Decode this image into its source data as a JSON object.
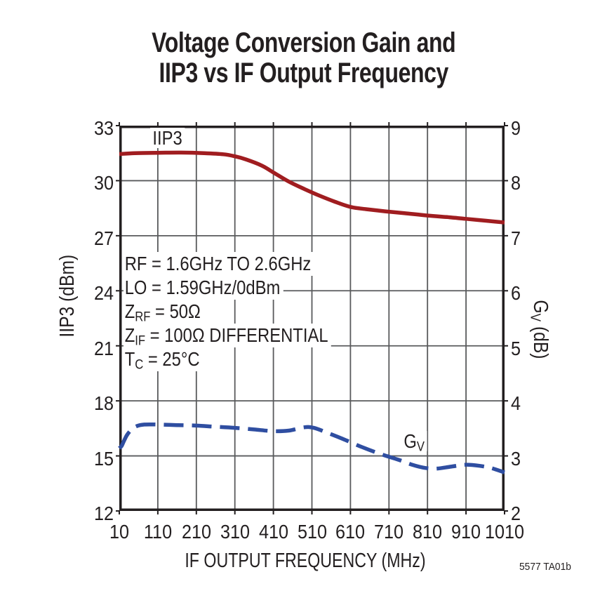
{
  "footnote": "5577 TA01b",
  "curve_labels": {
    "iip3": "IIP3",
    "gv_pre": "G",
    "gv_sub": "V"
  },
  "axis_titles": {
    "left": "IIP3 (dBm)",
    "right_pre": "G",
    "right_sub": "V",
    "right_post": " (dB)"
  },
  "annotation_lines": [
    {
      "pre": "RF = 1.6GHz TO 2.6GHz",
      "sub": "",
      "post": ""
    },
    {
      "pre": "LO = 1.59GHz/0dBm",
      "sub": "",
      "post": ""
    },
    {
      "pre": "Z",
      "sub": "RF",
      "post": " = 50Ω"
    },
    {
      "pre": "Z",
      "sub": "IF",
      "post": " = 100Ω DIFFERENTIAL"
    },
    {
      "pre": "T",
      "sub": "C",
      "post": " = 25°C"
    }
  ],
  "colors": {
    "iip3_curve": "#A01D20",
    "gv_curve": "#2F4EA1",
    "grid": "#595A5C",
    "frame": "#231F20",
    "text": "#231F20",
    "background": "#FFFFFF"
  },
  "chart_data": {
    "type": "line",
    "title": "Voltage Conversion Gain and IIP3 vs IF Output Frequency",
    "title_lines": [
      "Voltage Conversion Gain and",
      "IIP3 vs IF Output Frequency"
    ],
    "xlabel": "IF OUTPUT FREQUENCY (MHz)",
    "ylabel_left": "IIP3 (dBm)",
    "ylabel_right": "GV (dB)",
    "xlim": [
      10,
      1010
    ],
    "ylim_left": [
      12,
      33
    ],
    "ylim_right": [
      2,
      9
    ],
    "x_ticks": [
      10,
      110,
      210,
      310,
      410,
      510,
      610,
      710,
      810,
      910,
      1010
    ],
    "y_ticks_left": [
      33,
      30,
      27,
      24,
      21,
      18,
      15,
      12
    ],
    "y_ticks_right": [
      9,
      8,
      7,
      6,
      5,
      4,
      3,
      2
    ],
    "grid": true,
    "annotations": [
      "RF = 1.6GHz TO 2.6GHz",
      "LO = 1.59GHz/0dBm",
      "ZRF = 50Ω",
      "ZIF = 100Ω DIFFERENTIAL",
      "TC = 25°C"
    ],
    "series": [
      {
        "name": "IIP3",
        "axis": "left",
        "unit": "dBm",
        "line_style": "solid",
        "color": "#A01D20",
        "points": [
          [
            10,
            31.45
          ],
          [
            50,
            31.5
          ],
          [
            110,
            31.52
          ],
          [
            170,
            31.53
          ],
          [
            230,
            31.5
          ],
          [
            280,
            31.44
          ],
          [
            310,
            31.33
          ],
          [
            340,
            31.15
          ],
          [
            380,
            30.82
          ],
          [
            410,
            30.45
          ],
          [
            450,
            29.95
          ],
          [
            490,
            29.55
          ],
          [
            530,
            29.18
          ],
          [
            570,
            28.85
          ],
          [
            610,
            28.57
          ],
          [
            650,
            28.45
          ],
          [
            700,
            28.33
          ],
          [
            750,
            28.23
          ],
          [
            810,
            28.1
          ],
          [
            870,
            28.0
          ],
          [
            910,
            27.92
          ],
          [
            960,
            27.82
          ],
          [
            1010,
            27.72
          ]
        ]
      },
      {
        "name": "GV",
        "axis": "right",
        "unit": "dB",
        "line_style": "dashed",
        "color": "#2F4EA1",
        "points": [
          [
            10,
            3.14
          ],
          [
            16,
            3.18
          ],
          [
            22,
            3.27
          ],
          [
            30,
            3.38
          ],
          [
            42,
            3.48
          ],
          [
            55,
            3.54
          ],
          [
            75,
            3.57
          ],
          [
            110,
            3.57
          ],
          [
            160,
            3.56
          ],
          [
            210,
            3.55
          ],
          [
            260,
            3.53
          ],
          [
            310,
            3.51
          ],
          [
            360,
            3.48
          ],
          [
            410,
            3.45
          ],
          [
            450,
            3.46
          ],
          [
            490,
            3.52
          ],
          [
            515,
            3.51
          ],
          [
            550,
            3.42
          ],
          [
            590,
            3.31
          ],
          [
            640,
            3.16
          ],
          [
            690,
            3.03
          ],
          [
            735,
            2.93
          ],
          [
            770,
            2.84
          ],
          [
            805,
            2.78
          ],
          [
            835,
            2.77
          ],
          [
            875,
            2.81
          ],
          [
            910,
            2.84
          ],
          [
            945,
            2.82
          ],
          [
            975,
            2.78
          ],
          [
            1010,
            2.7
          ]
        ]
      }
    ]
  }
}
